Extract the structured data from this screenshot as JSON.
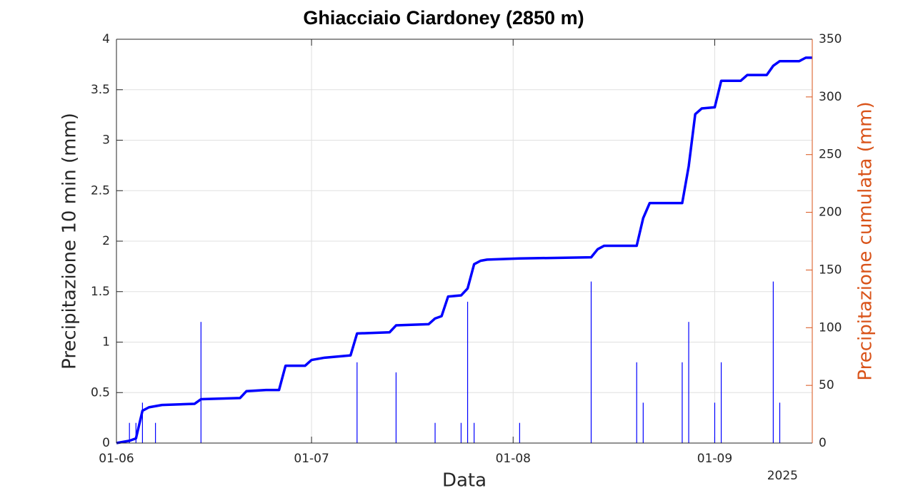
{
  "chart_data": {
    "type": "bar-line",
    "title": "Ghiacciaio Ciardoney (2850 m)",
    "xlabel": "Data",
    "ylabel": "Precipitazione 10 min (mm)",
    "y2label": "Precipitazione cumulata (mm)",
    "x_offset_label": "2025",
    "xlim": [
      "2025-06-01",
      "2025-09-16"
    ],
    "xticks": [
      {
        "value": "2025-06-01",
        "label": "01-06"
      },
      {
        "value": "2025-07-01",
        "label": "01-07"
      },
      {
        "value": "2025-08-01",
        "label": "01-08"
      },
      {
        "value": "2025-09-01",
        "label": "01-09"
      }
    ],
    "ylim": [
      0,
      4
    ],
    "yticks": [
      0,
      0.5,
      1,
      1.5,
      2,
      2.5,
      3,
      3.5,
      4
    ],
    "y2lim": [
      0,
      350
    ],
    "y2ticks": [
      0,
      50,
      100,
      150,
      200,
      250,
      300,
      350
    ],
    "y2color": "#d95319",
    "grid": true,
    "series": [
      {
        "type": "bar",
        "color": "#0000ff",
        "x": [
          "2025-06-03",
          "2025-06-04",
          "2025-06-05",
          "2025-06-07",
          "2025-06-14",
          "2025-07-08",
          "2025-07-14",
          "2025-07-20",
          "2025-07-24",
          "2025-07-25",
          "2025-07-26",
          "2025-08-02",
          "2025-08-13",
          "2025-08-20",
          "2025-08-21",
          "2025-08-27",
          "2025-08-28",
          "2025-09-01",
          "2025-09-02",
          "2025-09-10",
          "2025-09-11"
        ],
        "values": [
          0.2,
          0.2,
          0.4,
          0.2,
          1.2,
          0.8,
          0.7,
          0.2,
          0.2,
          1.4,
          0.2,
          0.2,
          1.6,
          0.8,
          0.4,
          0.8,
          1.2,
          0.4,
          0.8,
          1.6,
          0.4
        ]
      },
      {
        "type": "line",
        "axis": "y2",
        "color": "#0000ff",
        "x": [
          "2025-06-01",
          "2025-06-03",
          "2025-06-04",
          "2025-06-05",
          "2025-06-06",
          "2025-06-08",
          "2025-06-13",
          "2025-06-14",
          "2025-06-20",
          "2025-06-21",
          "2025-06-24",
          "2025-06-26",
          "2025-06-27",
          "2025-06-30",
          "2025-07-01",
          "2025-07-03",
          "2025-07-07",
          "2025-07-08",
          "2025-07-13",
          "2025-07-14",
          "2025-07-19",
          "2025-07-20",
          "2025-07-21",
          "2025-07-22",
          "2025-07-24",
          "2025-07-25",
          "2025-07-26",
          "2025-07-27",
          "2025-07-28",
          "2025-08-02",
          "2025-08-13",
          "2025-08-14",
          "2025-08-15",
          "2025-08-20",
          "2025-08-21",
          "2025-08-22",
          "2025-08-27",
          "2025-08-28",
          "2025-08-29",
          "2025-08-30",
          "2025-09-01",
          "2025-09-02",
          "2025-09-05",
          "2025-09-06",
          "2025-09-09",
          "2025-09-10",
          "2025-09-11",
          "2025-09-14",
          "2025-09-15",
          "2025-09-16"
        ],
        "values": [
          0,
          2,
          4,
          28,
          31,
          33,
          34,
          38,
          39,
          45,
          46,
          46,
          67,
          67,
          72,
          74,
          76,
          95,
          96,
          102,
          103,
          108,
          110,
          127,
          128,
          134,
          155,
          158,
          159,
          160,
          161,
          168,
          171,
          171,
          195,
          208,
          208,
          240,
          285,
          290,
          291,
          314,
          314,
          319,
          319,
          327,
          331,
          331,
          334,
          334
        ]
      }
    ]
  }
}
